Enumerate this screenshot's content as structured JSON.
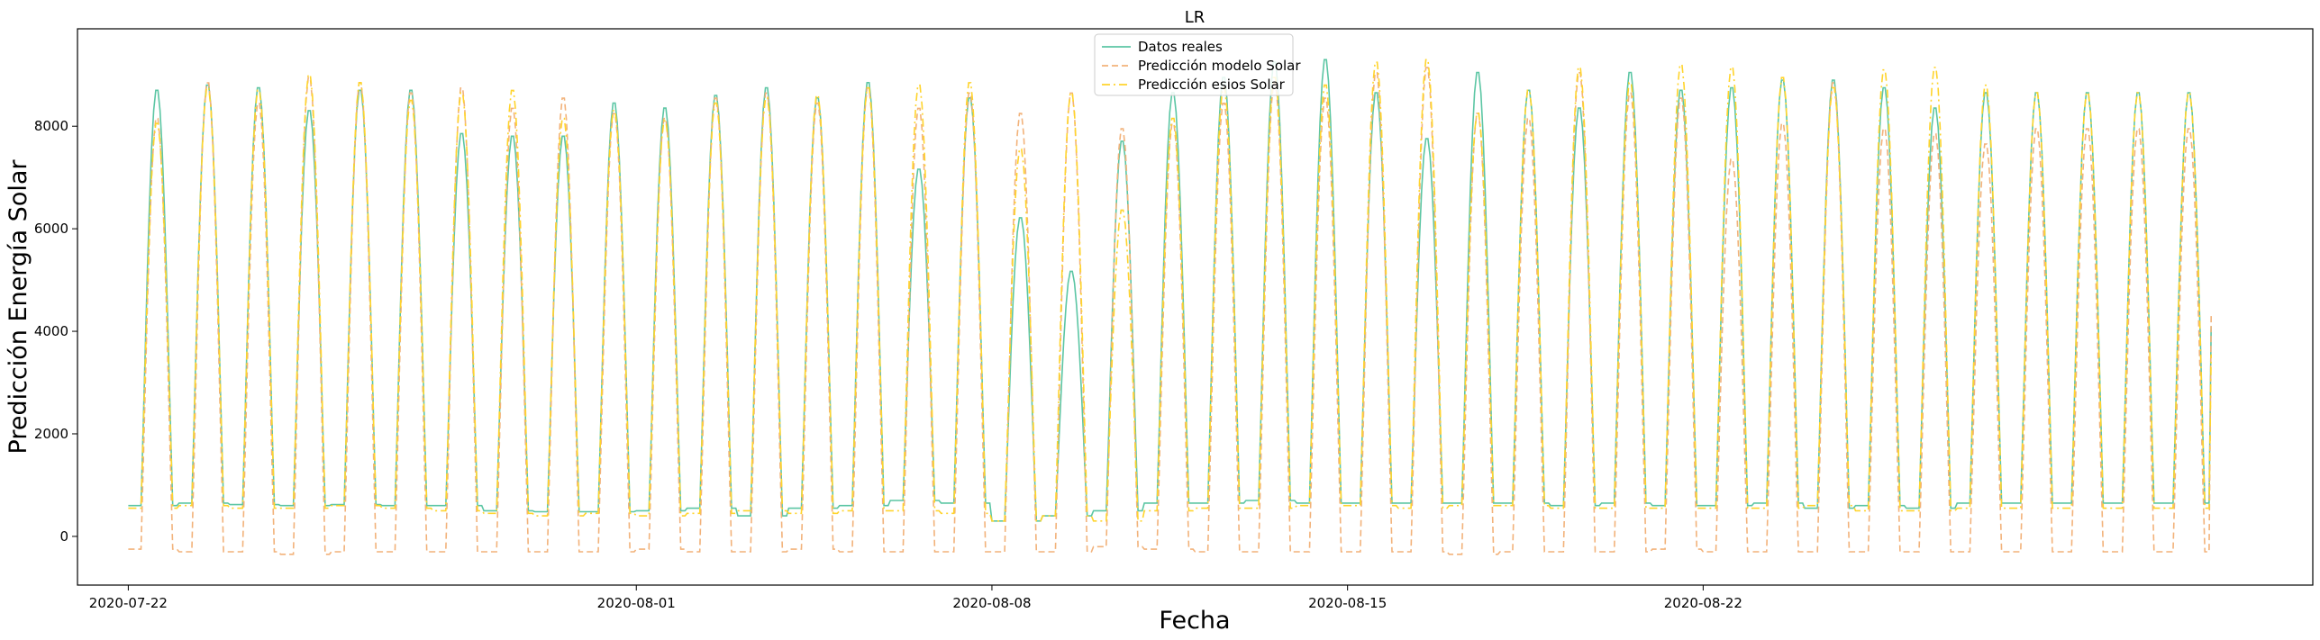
{
  "chart_data": {
    "type": "line",
    "title": "LR",
    "xlabel": "Fecha",
    "ylabel": "Predicción Energía Solar",
    "x_range": [
      "2020-07-22 00:00",
      "2020-09-01 00:00"
    ],
    "xlim": [
      "2020-07-21 00:00",
      "2020-09-03 00:00"
    ],
    "ylim": [
      -950,
      9900
    ],
    "x_ticks": [
      "2020-07-22",
      "2020-08-01",
      "2020-08-08",
      "2020-08-15",
      "2020-08-22"
    ],
    "y_ticks": [
      0,
      2000,
      4000,
      6000,
      8000
    ],
    "legend_position": "top-center",
    "grid": false,
    "series": [
      {
        "name": "Datos reales",
        "color": "#5cc6a4",
        "style": "solid",
        "daily_peaks": [
          8750,
          8850,
          8800,
          8350,
          8750,
          8750,
          7900,
          7850,
          7850,
          8500,
          8400,
          8650,
          8800,
          8600,
          8900,
          7200,
          8600,
          6250,
          5200,
          7750,
          8700,
          9000,
          9300,
          9350,
          8700,
          7800,
          9100,
          8750,
          8400,
          9100,
          8750,
          8800,
          8950,
          8950,
          8800,
          8400,
          8700,
          8700
        ],
        "night_levels": [
          600,
          650,
          620,
          600,
          620,
          600,
          600,
          500,
          480,
          480,
          500,
          550,
          400,
          550,
          600,
          700,
          650,
          300,
          400,
          500,
          650,
          650,
          700,
          650,
          650,
          650,
          650,
          650,
          600,
          650,
          600,
          600,
          650,
          550,
          600,
          550,
          650,
          650
        ],
        "end_value": 4100
      },
      {
        "name": "Predicción modelo Solar",
        "color": "#f2b27a",
        "style": "dashed",
        "daily_peaks": [
          8200,
          8900,
          8500,
          9000,
          8900,
          8700,
          8800,
          8400,
          8600,
          8300,
          8200,
          8600,
          8700,
          8500,
          8800,
          8400,
          8700,
          8300,
          8700,
          8000,
          8100,
          8500,
          8900,
          8600,
          9100,
          9200,
          8300,
          8200,
          9100,
          8700,
          8600,
          7400,
          8100,
          8900,
          8000,
          7900,
          7700,
          8000
        ],
        "night_levels": [
          -250,
          -300,
          -300,
          -350,
          -300,
          -300,
          -300,
          -300,
          -300,
          -300,
          -250,
          -300,
          -300,
          -250,
          -300,
          -300,
          -300,
          -300,
          -300,
          -200,
          -250,
          -300,
          -300,
          -300,
          -300,
          -300,
          -350,
          -300,
          -300,
          -300,
          -250,
          -300,
          -300,
          -300,
          -300,
          -300,
          -300,
          -300
        ],
        "end_value": 4300
      },
      {
        "name": "Predicción esios Solar",
        "color": "#ffd42c",
        "style": "dashdot",
        "daily_peaks": [
          8100,
          8800,
          8750,
          9050,
          8900,
          8550,
          8700,
          8750,
          8200,
          8350,
          8150,
          8500,
          8600,
          8650,
          8800,
          8850,
          8900,
          7600,
          8700,
          6400,
          8200,
          8800,
          9000,
          8850,
          9300,
          9350,
          8300,
          8750,
          9200,
          8900,
          9250,
          9200,
          9000,
          8800,
          9150,
          9200,
          8850,
          8700
        ],
        "night_levels": [
          550,
          600,
          550,
          550,
          600,
          550,
          500,
          450,
          400,
          450,
          400,
          450,
          500,
          450,
          500,
          500,
          450,
          300,
          400,
          300,
          500,
          550,
          550,
          600,
          600,
          550,
          600,
          600,
          550,
          550,
          550,
          550,
          550,
          600,
          500,
          500,
          550,
          550
        ],
        "end_value": 3550
      }
    ]
  }
}
